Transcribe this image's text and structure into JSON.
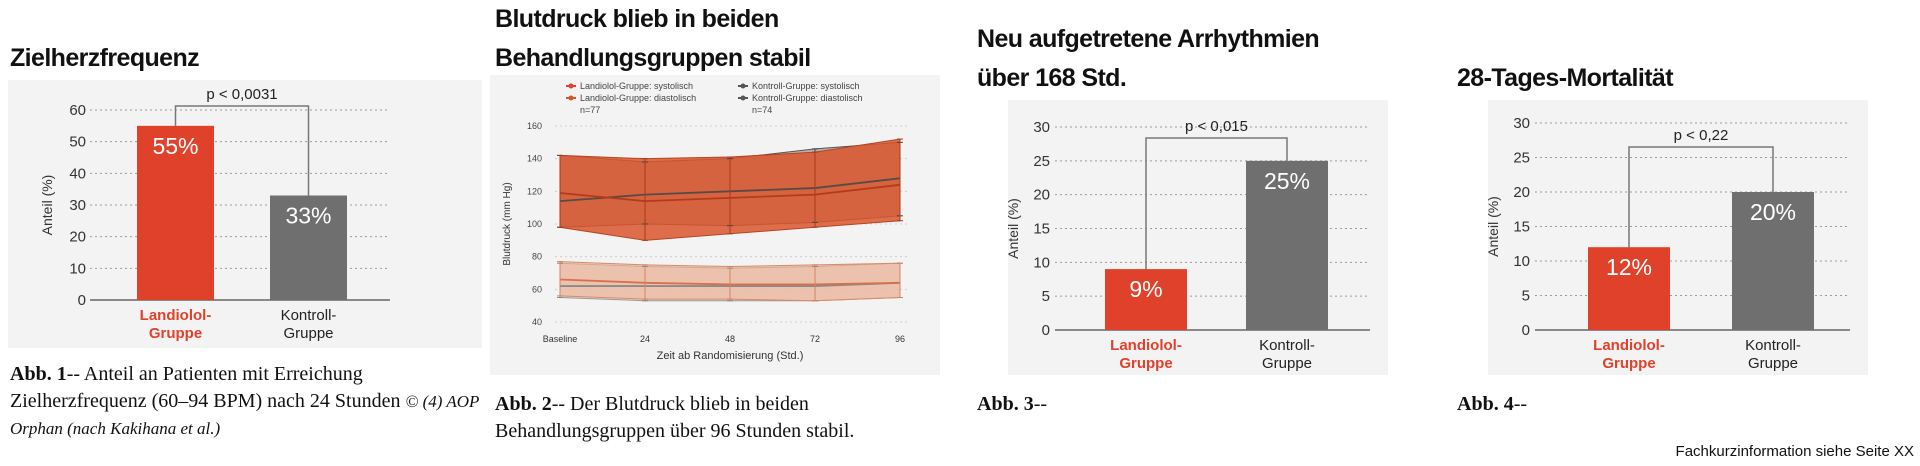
{
  "colors": {
    "landiolol": "#e0412a",
    "kontroll": "#6f6f6f",
    "landiolol_label": "#e0412a",
    "systolic_band": "#d9562d",
    "diastolic_band": "#f0b59a",
    "kontroll_line": "#555555"
  },
  "panels": {
    "p1": {
      "title": "Zielherzfrequenz",
      "caption_bold": "Abb. 1",
      "caption_text": "-- Anteil an Patienten mit Erreichung Zielherzfrequenz (60–94 BPM) nach 24 Stunden ",
      "caption_italic": "© (4) AOP Orphan (nach Kakihana et al.)"
    },
    "p2": {
      "title_line1": "Blutdruck blieb in beiden",
      "title_line2": "Behandlungsgruppen stabil",
      "caption_bold": "Abb. 2",
      "caption_text": "-- Der Blutdruck blieb in beiden Behandlungsgruppen über 96 Stunden stabil."
    },
    "p3": {
      "title_line1": "Neu aufgetretene Arrhythmien",
      "title_line2": "über 168 Std.",
      "caption_bold": "Abb. 3",
      "caption_text": "--"
    },
    "p4": {
      "title": "28-Tages-Mortalität",
      "caption_bold": "Abb. 4",
      "caption_text": "--"
    }
  },
  "footer": "Fachkurzinformation siehe Seite XX",
  "chart_data": [
    {
      "type": "bar",
      "title": "Zielherzfrequenz",
      "ylabel": "Anteil (%)",
      "ylim": [
        0,
        60
      ],
      "yticks": [
        0,
        10,
        20,
        30,
        40,
        50,
        60
      ],
      "categories": [
        "Landiolol-\nGruppe",
        "Kontroll-\nGruppe"
      ],
      "values": [
        55,
        33
      ],
      "value_labels": [
        "55%",
        "33%"
      ],
      "pvalue": "p < 0,0031"
    },
    {
      "type": "line",
      "title": "Blutdruck blieb in beiden Behandlungsgruppen stabil",
      "xlabel": "Zeit ab Randomisierung (Std.)",
      "ylabel": "Blutdruck (mm Hg)",
      "x": [
        0,
        24,
        48,
        72,
        96
      ],
      "xticklabels": [
        "Baseline",
        "24",
        "48",
        "72",
        "96"
      ],
      "ylim": [
        40,
        160
      ],
      "yticks": [
        40,
        60,
        80,
        100,
        120,
        140,
        160
      ],
      "legend": [
        "Landiolol-Gruppe: systolisch",
        "Landiolol-Gruppe: diastolisch",
        "n=77",
        "Kontroll-Gruppe: systolisch",
        "Kontroll-Gruppe: diastolisch",
        "n=74"
      ],
      "series": [
        {
          "name": "Landiolol-Gruppe: systolisch",
          "values": [
            119,
            114,
            116,
            118,
            124
          ],
          "upper": [
            142,
            140,
            141,
            144,
            152
          ],
          "lower": [
            98,
            90,
            94,
            98,
            102
          ]
        },
        {
          "name": "Kontroll-Gruppe: systolisch",
          "values": [
            114,
            118,
            120,
            122,
            128
          ],
          "upper": [
            142,
            138,
            140,
            146,
            150
          ],
          "lower": [
            98,
            100,
            99,
            101,
            105
          ]
        },
        {
          "name": "Landiolol-Gruppe: diastolisch",
          "values": [
            66,
            64,
            63,
            63,
            64
          ],
          "upper": [
            77,
            75,
            74,
            75,
            76
          ],
          "lower": [
            56,
            54,
            54,
            53,
            55
          ]
        },
        {
          "name": "Kontroll-Gruppe: diastolisch",
          "values": [
            62,
            62,
            62,
            62,
            64
          ],
          "upper": [
            76,
            74,
            73,
            74,
            76
          ],
          "lower": [
            55,
            53,
            53,
            53,
            55
          ]
        }
      ]
    },
    {
      "type": "bar",
      "title": "Neu aufgetretene Arrhythmien über 168 Std.",
      "ylabel": "Anteil (%)",
      "ylim": [
        0,
        30
      ],
      "yticks": [
        0,
        5,
        10,
        15,
        20,
        25,
        30
      ],
      "categories": [
        "Landiolol-\nGruppe",
        "Kontroll-\nGruppe"
      ],
      "values": [
        9,
        25
      ],
      "value_labels": [
        "9%",
        "25%"
      ],
      "pvalue": "p < 0,015"
    },
    {
      "type": "bar",
      "title": "28-Tages-Mortalität",
      "ylabel": "Anteil (%)",
      "ylim": [
        0,
        30
      ],
      "yticks": [
        0,
        5,
        10,
        15,
        20,
        25,
        30
      ],
      "categories": [
        "Landiolol-\nGruppe",
        "Kontroll-\nGruppe"
      ],
      "values": [
        12,
        20
      ],
      "value_labels": [
        "12%",
        "20%"
      ],
      "pvalue": "p < 0,22"
    }
  ]
}
